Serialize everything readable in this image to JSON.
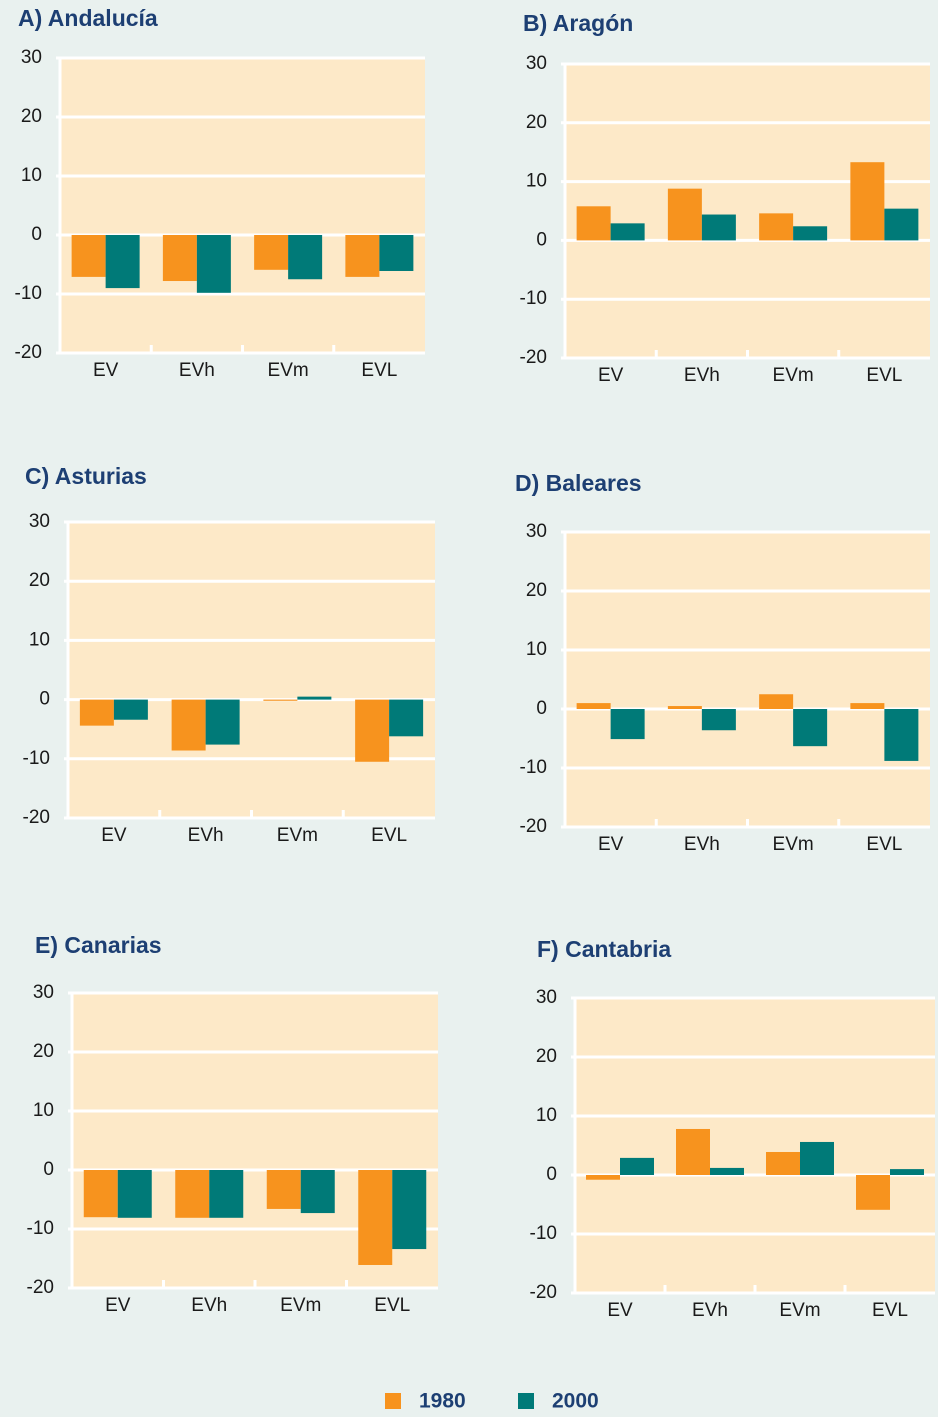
{
  "chart_data": [
    {
      "type": "bar",
      "title": "A) Andalucía",
      "categories": [
        "EV",
        "EVh",
        "EVm",
        "EVL"
      ],
      "series": [
        {
          "name": "1980",
          "color": "#f7931e",
          "values": [
            -7.1,
            -7.8,
            -5.9,
            -7.1
          ]
        },
        {
          "name": "2000",
          "color": "#007a78",
          "values": [
            -9.0,
            -9.8,
            -7.5,
            -6.1
          ]
        }
      ],
      "ylim": [
        -20,
        30
      ],
      "yticks": [
        -20,
        -10,
        0,
        10,
        20,
        30
      ],
      "grid": true
    },
    {
      "type": "bar",
      "title": "B) Aragón",
      "categories": [
        "EV",
        "EVh",
        "EVm",
        "EVL"
      ],
      "series": [
        {
          "name": "1980",
          "color": "#f7931e",
          "values": [
            5.8,
            8.8,
            4.6,
            13.3
          ]
        },
        {
          "name": "2000",
          "color": "#007a78",
          "values": [
            2.9,
            4.4,
            2.4,
            5.4
          ]
        }
      ],
      "ylim": [
        -20,
        30
      ],
      "yticks": [
        -20,
        -10,
        0,
        10,
        20,
        30
      ],
      "grid": true
    },
    {
      "type": "bar",
      "title": "C) Asturias",
      "categories": [
        "EV",
        "EVh",
        "EVm",
        "EVL"
      ],
      "series": [
        {
          "name": "1980",
          "color": "#f7931e",
          "values": [
            -4.4,
            -8.6,
            -0.2,
            -10.5
          ]
        },
        {
          "name": "2000",
          "color": "#007a78",
          "values": [
            -3.4,
            -7.6,
            0.5,
            -6.2
          ]
        }
      ],
      "ylim": [
        -20,
        30
      ],
      "yticks": [
        -20,
        -10,
        0,
        10,
        20,
        30
      ],
      "grid": true
    },
    {
      "type": "bar",
      "title": "D) Baleares",
      "categories": [
        "EV",
        "EVh",
        "EVm",
        "EVL"
      ],
      "series": [
        {
          "name": "1980",
          "color": "#f7931e",
          "values": [
            1.0,
            0.5,
            2.5,
            1.0
          ]
        },
        {
          "name": "2000",
          "color": "#007a78",
          "values": [
            -5.1,
            -3.6,
            -6.3,
            -8.8
          ]
        }
      ],
      "ylim": [
        -20,
        30
      ],
      "yticks": [
        -20,
        -10,
        0,
        10,
        20,
        30
      ],
      "grid": true
    },
    {
      "type": "bar",
      "title": "E) Canarias",
      "categories": [
        "EV",
        "EVh",
        "EVm",
        "EVL"
      ],
      "series": [
        {
          "name": "1980",
          "color": "#f7931e",
          "values": [
            -8.0,
            -8.1,
            -6.6,
            -16.1
          ]
        },
        {
          "name": "2000",
          "color": "#007a78",
          "values": [
            -8.1,
            -8.1,
            -7.3,
            -13.4
          ]
        }
      ],
      "ylim": [
        -20,
        30
      ],
      "yticks": [
        -20,
        -10,
        0,
        10,
        20,
        30
      ],
      "grid": true
    },
    {
      "type": "bar",
      "title": "F) Cantabria",
      "categories": [
        "EV",
        "EVh",
        "EVm",
        "EVL"
      ],
      "series": [
        {
          "name": "1980",
          "color": "#f7931e",
          "values": [
            -0.8,
            7.8,
            3.9,
            -5.9
          ]
        },
        {
          "name": "2000",
          "color": "#007a78",
          "values": [
            2.9,
            1.2,
            5.6,
            1.0
          ]
        }
      ],
      "ylim": [
        -20,
        30
      ],
      "yticks": [
        -20,
        -10,
        0,
        10,
        20,
        30
      ],
      "grid": true
    }
  ]
}
